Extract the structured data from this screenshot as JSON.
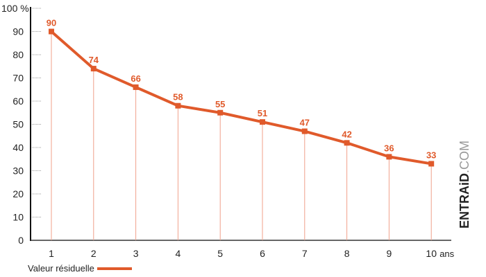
{
  "chart_data": {
    "type": "line",
    "categories": [
      "1",
      "2",
      "3",
      "4",
      "5",
      "6",
      "7",
      "8",
      "9",
      "10"
    ],
    "series": [
      {
        "name": "Valeur résiduelle",
        "values": [
          90,
          74,
          66,
          58,
          55,
          51,
          47,
          42,
          36,
          33
        ]
      }
    ],
    "y_ticks": [
      "0",
      "10",
      "20",
      "30",
      "40",
      "50",
      "60",
      "70",
      "80",
      "90",
      "100 %"
    ],
    "x_unit": "ans",
    "ylim": [
      0,
      100
    ],
    "grid": false,
    "legend": "bottom-left",
    "color": "#e05a2b"
  },
  "watermark": "ENTRAiD.COM"
}
